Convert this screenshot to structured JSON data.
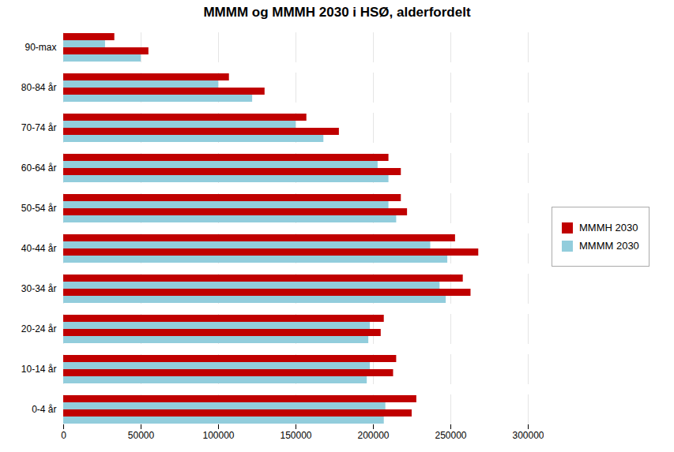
{
  "chart_data": {
    "type": "bar",
    "orientation": "horizontal",
    "title": "MMMM og MMMH 2030 i HSØ, alderfordelt",
    "categories": [
      "0-4 år",
      "10-14 år",
      "20-24 år",
      "30-34 år",
      "40-44 år",
      "50-54 år",
      "60-64 år",
      "70-74 år",
      "80-84 år",
      "90-max"
    ],
    "series": [
      {
        "name": "MMMH 2030",
        "color": "#C00000",
        "values": [
          228000,
          215000,
          207000,
          258000,
          253000,
          218000,
          210000,
          157000,
          107000,
          33000
        ]
      },
      {
        "name": "MMMM 2030",
        "color": "#92CDDC",
        "values": [
          208000,
          198000,
          198000,
          243000,
          237000,
          210000,
          203000,
          150000,
          100000,
          27000
        ]
      },
      {
        "color": "#C00000",
        "values": [
          225000,
          213000,
          205000,
          263000,
          268000,
          222000,
          218000,
          178000,
          130000,
          55000
        ]
      },
      {
        "color": "#92CDDC",
        "values": [
          207000,
          196000,
          197000,
          247000,
          248000,
          215000,
          210000,
          168000,
          122000,
          50000
        ]
      }
    ],
    "xlim": [
      0,
      300000
    ],
    "xticks": [
      0,
      50000,
      100000,
      150000,
      200000,
      250000,
      300000
    ],
    "grid": true,
    "legend": "right"
  }
}
